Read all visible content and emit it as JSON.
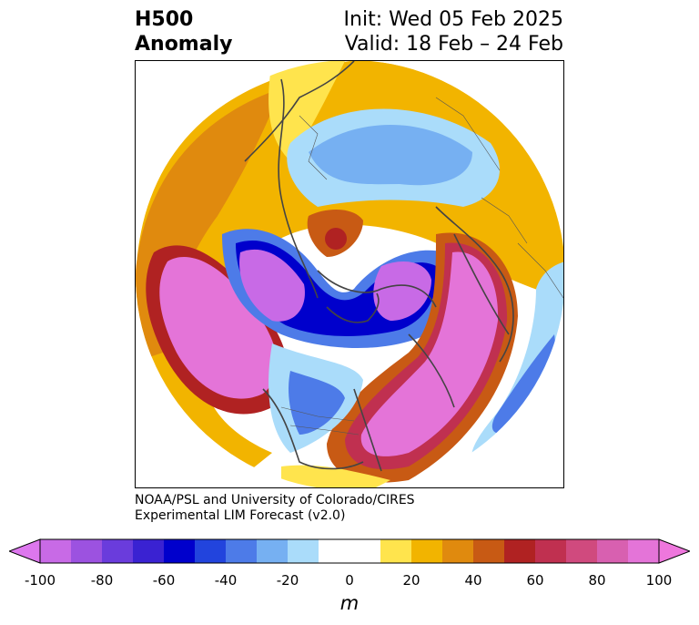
{
  "title": {
    "line1_left": "H500",
    "line2_left": "Anomaly",
    "line1_right": "Init: Wed 05 Feb 2025",
    "line2_right": "Valid: 18 Feb – 24 Feb"
  },
  "credit": {
    "line1": "NOAA/PSL and University of Colorado/CIRES",
    "line2": "Experimental LIM Forecast (v2.0)"
  },
  "colorbar": {
    "unit": "m",
    "ticks": [
      "-100",
      "-80",
      "-60",
      "-40",
      "-20",
      "0",
      "20",
      "40",
      "60",
      "80",
      "100"
    ],
    "min_color": "#dd77ee",
    "max_color": "#ee77dd",
    "bins": [
      {
        "from": -100,
        "to": -90,
        "color": "#c86ae6"
      },
      {
        "from": -90,
        "to": -80,
        "color": "#9c52e0"
      },
      {
        "from": -80,
        "to": -70,
        "color": "#6a3cdc"
      },
      {
        "from": -70,
        "to": -60,
        "color": "#3a22d2"
      },
      {
        "from": -60,
        "to": -50,
        "color": "#0000cc"
      },
      {
        "from": -50,
        "to": -40,
        "color": "#2244dd"
      },
      {
        "from": -40,
        "to": -30,
        "color": "#4d7be8"
      },
      {
        "from": -30,
        "to": -20,
        "color": "#76b0f2"
      },
      {
        "from": -20,
        "to": -10,
        "color": "#aadcfa"
      },
      {
        "from": -10,
        "to": 10,
        "color": "#ffffff"
      },
      {
        "from": 10,
        "to": 20,
        "color": "#ffe44d"
      },
      {
        "from": 20,
        "to": 30,
        "color": "#f2b400"
      },
      {
        "from": 30,
        "to": 40,
        "color": "#e08a0e"
      },
      {
        "from": 40,
        "to": 50,
        "color": "#c85a14"
      },
      {
        "from": 50,
        "to": 60,
        "color": "#b02222"
      },
      {
        "from": 60,
        "to": 70,
        "color": "#c03050"
      },
      {
        "from": 70,
        "to": 80,
        "color": "#d04a7e"
      },
      {
        "from": 80,
        "to": 90,
        "color": "#d860b0"
      },
      {
        "from": 90,
        "to": 100,
        "color": "#e474d8"
      }
    ]
  }
}
